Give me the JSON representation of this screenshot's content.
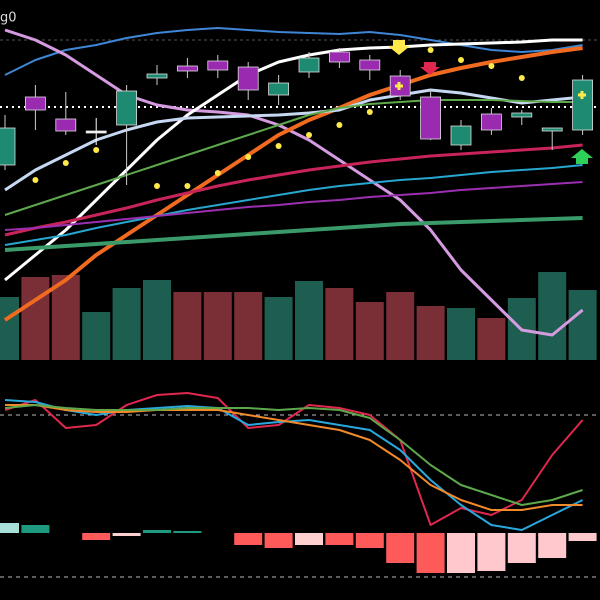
{
  "chart_data": [
    {
      "type": "candlestick",
      "title": "g0",
      "ylim": [
        0,
        360
      ],
      "up_color": "#1f8a72",
      "down_color": "#9a2bb0",
      "open": [
        195,
        263,
        241,
        229,
        235,
        282,
        294,
        299,
        293,
        265,
        288,
        308,
        300,
        284,
        263,
        215,
        246,
        243,
        229,
        230
      ],
      "high": [
        245,
        275,
        268,
        242,
        275,
        295,
        302,
        305,
        298,
        285,
        308,
        312,
        305,
        290,
        270,
        240,
        252,
        250,
        232,
        285
      ],
      "low": [
        190,
        230,
        225,
        215,
        175,
        275,
        282,
        282,
        260,
        255,
        282,
        292,
        280,
        260,
        220,
        210,
        225,
        235,
        210,
        225
      ],
      "close": [
        232,
        250,
        229,
        229,
        269,
        286,
        289,
        290,
        270,
        277,
        302,
        298,
        290,
        264,
        221,
        234,
        230,
        247,
        232,
        280
      ],
      "series": [
        {
          "color": "#3f86d6",
          "width": 2,
          "values": [
            285,
            300,
            310,
            315,
            322,
            327,
            330,
            332,
            330,
            328,
            327,
            326,
            328,
            325,
            320,
            315,
            310,
            308,
            310,
            315
          ]
        },
        {
          "color": "#d59be0",
          "width": 3,
          "values": [
            330,
            320,
            305,
            285,
            265,
            255,
            250,
            248,
            245,
            235,
            220,
            200,
            180,
            160,
            130,
            90,
            60,
            30,
            25,
            50
          ]
        },
        {
          "color": "#ffffff",
          "width": 3,
          "values": [
            80,
            105,
            130,
            160,
            190,
            220,
            245,
            265,
            285,
            298,
            305,
            310,
            312,
            313,
            315,
            316,
            317,
            318,
            320,
            320
          ]
        },
        {
          "color": "#f06a20",
          "width": 4,
          "values": [
            40,
            60,
            80,
            105,
            125,
            145,
            165,
            185,
            205,
            225,
            240,
            252,
            265,
            275,
            285,
            292,
            298,
            303,
            308,
            312
          ]
        },
        {
          "color": "#c7d8f2",
          "width": 3,
          "values": [
            170,
            190,
            205,
            220,
            230,
            238,
            242,
            243,
            244,
            245,
            247,
            250,
            260,
            265,
            270,
            267,
            262,
            257,
            260,
            263
          ]
        },
        {
          "color": "#5ea84c",
          "width": 2,
          "values": [
            145,
            155,
            165,
            175,
            185,
            195,
            205,
            215,
            225,
            235,
            245,
            252,
            256,
            258,
            260,
            260,
            260,
            259,
            258,
            258
          ]
        },
        {
          "color": "#c8245a",
          "width": 3,
          "values": [
            125,
            132,
            138,
            145,
            152,
            160,
            167,
            174,
            180,
            185,
            190,
            194,
            198,
            201,
            204,
            206,
            208,
            210,
            212,
            215
          ]
        },
        {
          "color": "#27a6d0",
          "width": 2,
          "values": [
            115,
            120,
            125,
            132,
            138,
            144,
            150,
            155,
            160,
            165,
            170,
            174,
            177,
            180,
            182,
            185,
            188,
            190,
            192,
            195
          ]
        },
        {
          "color": "#9a2fb0",
          "width": 2,
          "values": [
            130,
            132,
            135,
            138,
            141,
            144,
            147,
            150,
            153,
            155,
            158,
            160,
            163,
            165,
            167,
            170,
            172,
            174,
            176,
            178
          ]
        },
        {
          "color": "#3a9a6a",
          "width": 4,
          "values": [
            110,
            112,
            114,
            116,
            118,
            120,
            122,
            124,
            126,
            128,
            130,
            132,
            134,
            136,
            137,
            138,
            139,
            140,
            141,
            142
          ]
        }
      ],
      "dots": {
        "color": "#ffe94a",
        "values": [
          null,
          180,
          197,
          210,
          null,
          174,
          174,
          187,
          203,
          214,
          225,
          235,
          248,
          null,
          310,
          300,
          294,
          282,
          null,
          null
        ]
      }
    },
    {
      "type": "bar",
      "ylim": [
        0,
        90
      ],
      "values": [
        63,
        83,
        85,
        48,
        72,
        80,
        68,
        68,
        68,
        63,
        79,
        72,
        58,
        68,
        54,
        52,
        42,
        62,
        88,
        70
      ],
      "colors": [
        "#1e5e50",
        "#7a2e36",
        "#7a2e36",
        "#1e5e50",
        "#1e5e50",
        "#1e5e50",
        "#7a2e36",
        "#7a2e36",
        "#7a2e36",
        "#1e5e50",
        "#1e5e50",
        "#7a2e36",
        "#7a2e36",
        "#7a2e36",
        "#7a2e36",
        "#1e5e50",
        "#7a2e36",
        "#1e5e50",
        "#1e5e50",
        "#1e5e50"
      ]
    },
    {
      "type": "line",
      "ylim": [
        0,
        160
      ],
      "series": [
        {
          "color": "#e0284f",
          "values": [
            110,
            120,
            92,
            95,
            115,
            125,
            127,
            122,
            92,
            95,
            115,
            112,
            105,
            80,
            -5,
            12,
            5,
            20,
            65,
            100
          ]
        },
        {
          "color": "#2aa8dd",
          "values": [
            120,
            118,
            110,
            105,
            110,
            112,
            114,
            112,
            95,
            98,
            100,
            95,
            90,
            70,
            40,
            15,
            -5,
            -10,
            5,
            20
          ]
        },
        {
          "color": "#f08a2a",
          "values": [
            115,
            115,
            110,
            108,
            108,
            110,
            110,
            110,
            105,
            100,
            95,
            90,
            80,
            60,
            35,
            20,
            10,
            10,
            15,
            15
          ]
        },
        {
          "color": "#5ea84c",
          "values": [
            112,
            115,
            112,
            110,
            110,
            110,
            112,
            112,
            112,
            110,
            112,
            110,
            102,
            80,
            55,
            35,
            25,
            15,
            20,
            30
          ]
        }
      ]
    },
    {
      "type": "bar",
      "ylim": [
        -50,
        50
      ],
      "values": [
        10,
        8,
        0,
        -7,
        -3,
        3,
        2,
        0,
        -12,
        -15,
        -12,
        -12,
        -15,
        -30,
        -40,
        -40,
        -38,
        -30,
        -25,
        -8
      ],
      "colors": [
        "#a8e0d8",
        "#1e9a80",
        "#1e9a80",
        "#ff5a5a",
        "#ffd0d0",
        "#1e9a80",
        "#1e9a80",
        "#ff5a5a",
        "#ff5a5a",
        "#ff5a5a",
        "#ffd0d0",
        "#ff5a5a",
        "#ff5a5a",
        "#ff5a5a",
        "#ff5a5a",
        "#ffc8cc",
        "#ffc8cc",
        "#ffc8cc",
        "#ffc8cc",
        "#ffc8cc"
      ]
    }
  ]
}
